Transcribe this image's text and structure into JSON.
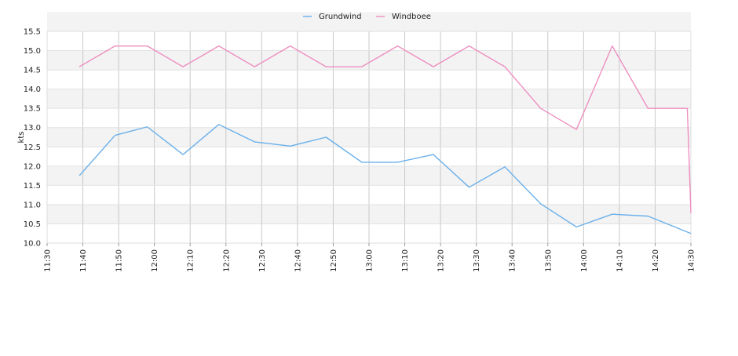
{
  "chart_data": {
    "type": "line",
    "title": "",
    "xlabel": "",
    "ylabel": "kts",
    "ylim": [
      10.0,
      15.5
    ],
    "xlim": [
      "11:30",
      "14:30"
    ],
    "grid": true,
    "legend_position": "top",
    "x_ticks": [
      "11:30",
      "11:40",
      "11:50",
      "12:00",
      "12:10",
      "12:20",
      "12:30",
      "12:40",
      "12:50",
      "13:00",
      "13:10",
      "13:20",
      "13:30",
      "13:40",
      "13:50",
      "14:00",
      "14:10",
      "14:20",
      "14:30"
    ],
    "y_ticks": [
      "10.0",
      "10.5",
      "11.0",
      "11.5",
      "12.0",
      "12.5",
      "13.0",
      "13.5",
      "14.0",
      "14.5",
      "15.0",
      "15.5"
    ],
    "series": [
      {
        "name": "Grundwind",
        "color": "#6ab0ea",
        "points": [
          [
            "11:39",
            11.75
          ],
          [
            "11:49",
            12.8
          ],
          [
            "11:58",
            13.02
          ],
          [
            "12:08",
            12.3
          ],
          [
            "12:18",
            13.08
          ],
          [
            "12:28",
            12.63
          ],
          [
            "12:38",
            12.52
          ],
          [
            "12:48",
            12.75
          ],
          [
            "12:58",
            12.1
          ],
          [
            "13:08",
            12.1
          ],
          [
            "13:18",
            12.3
          ],
          [
            "13:28",
            11.45
          ],
          [
            "13:38",
            11.98
          ],
          [
            "13:48",
            11.02
          ],
          [
            "13:58",
            10.42
          ],
          [
            "14:08",
            10.75
          ],
          [
            "14:18",
            10.7
          ],
          [
            "14:30",
            10.25
          ]
        ]
      },
      {
        "name": "Windboee",
        "color": "#ee8fc0",
        "points": [
          [
            "11:39",
            14.58
          ],
          [
            "11:49",
            15.12
          ],
          [
            "11:58",
            15.12
          ],
          [
            "12:08",
            14.58
          ],
          [
            "12:18",
            15.12
          ],
          [
            "12:28",
            14.58
          ],
          [
            "12:38",
            15.12
          ],
          [
            "12:48",
            14.58
          ],
          [
            "12:58",
            14.58
          ],
          [
            "13:08",
            15.12
          ],
          [
            "13:18",
            14.58
          ],
          [
            "13:28",
            15.12
          ],
          [
            "13:38",
            14.58
          ],
          [
            "13:48",
            13.5
          ],
          [
            "13:58",
            12.95
          ],
          [
            "14:08",
            15.12
          ],
          [
            "14:18",
            13.5
          ],
          [
            "14:29",
            13.5
          ],
          [
            "14:30",
            10.78
          ]
        ]
      }
    ]
  }
}
